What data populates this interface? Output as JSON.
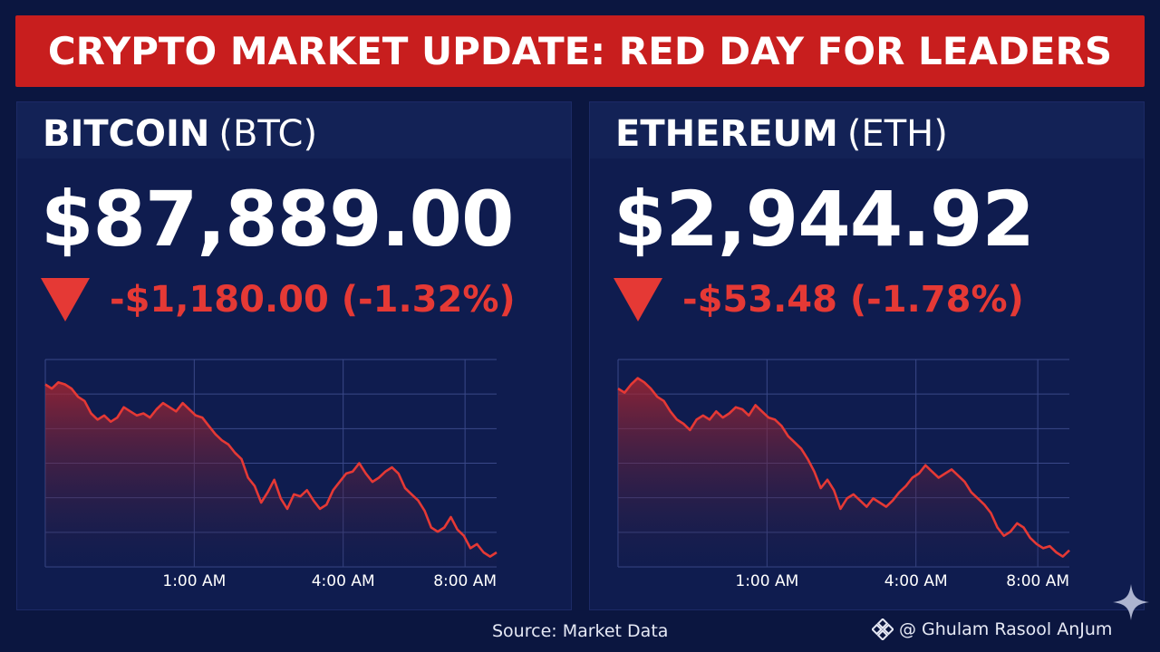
{
  "banner": {
    "title": "CRYPTO MARKET UPDATE: RED DAY FOR LEADERS"
  },
  "colors": {
    "banner": "#c81e1e",
    "background": "#0b1640",
    "panel": "#0f1c4f",
    "down": "#e53935"
  },
  "btc": {
    "name": "BITCOIN",
    "ticker": "(BTC)",
    "price": "$87,889.00",
    "change": "-$1,180.00 (-1.32%)",
    "direction_icon": "down-triangle-icon"
  },
  "eth": {
    "name": "ETHEREUM",
    "ticker": "(ETH)",
    "price": "$2,944.92",
    "change": "-$53.48 (-1.78%)",
    "direction_icon": "down-triangle-icon"
  },
  "chart_data": [
    {
      "type": "area",
      "series": [
        {
          "color": "#e53935",
          "values": [
            0.88,
            0.86,
            0.89,
            0.88,
            0.86,
            0.82,
            0.8,
            0.74,
            0.71,
            0.73,
            0.7,
            0.72,
            0.77,
            0.75,
            0.73,
            0.74,
            0.72,
            0.76,
            0.79,
            0.77,
            0.75,
            0.79,
            0.76,
            0.73,
            0.72,
            0.68,
            0.64,
            0.61,
            0.59,
            0.55,
            0.52,
            0.43,
            0.39,
            0.31,
            0.36,
            0.42,
            0.33,
            0.28,
            0.35,
            0.34,
            0.37,
            0.32,
            0.28,
            0.3,
            0.37,
            0.41,
            0.45,
            0.46,
            0.5,
            0.45,
            0.41,
            0.43,
            0.46,
            0.48,
            0.45,
            0.38,
            0.35,
            0.32,
            0.27,
            0.19,
            0.17,
            0.19,
            0.24,
            0.18,
            0.15,
            0.09,
            0.11,
            0.07,
            0.05,
            0.07
          ]
        }
      ],
      "x_ticks": [
        "1:00 AM",
        "4:00 AM",
        "8:00 AM"
      ],
      "grid": true
    },
    {
      "type": "area",
      "series": [
        {
          "color": "#e53935",
          "values": [
            0.86,
            0.84,
            0.88,
            0.91,
            0.89,
            0.86,
            0.82,
            0.8,
            0.75,
            0.71,
            0.69,
            0.66,
            0.71,
            0.73,
            0.71,
            0.75,
            0.72,
            0.74,
            0.77,
            0.76,
            0.73,
            0.78,
            0.75,
            0.72,
            0.71,
            0.68,
            0.63,
            0.6,
            0.57,
            0.52,
            0.46,
            0.38,
            0.42,
            0.37,
            0.28,
            0.33,
            0.35,
            0.32,
            0.29,
            0.33,
            0.31,
            0.29,
            0.32,
            0.36,
            0.39,
            0.43,
            0.45,
            0.49,
            0.46,
            0.43,
            0.45,
            0.47,
            0.44,
            0.41,
            0.36,
            0.33,
            0.3,
            0.26,
            0.19,
            0.15,
            0.17,
            0.21,
            0.19,
            0.14,
            0.11,
            0.09,
            0.1,
            0.07,
            0.05,
            0.08
          ]
        }
      ],
      "x_ticks": [
        "1:00 AM",
        "4:00 AM",
        "8:00 AM"
      ],
      "grid": true
    }
  ],
  "footer": {
    "source": "Source: Market Data",
    "credit": "@ Ghulam Rasool AnJum",
    "credit_icon": "binance-logo-icon",
    "sparkle_icon": "sparkle-icon"
  }
}
